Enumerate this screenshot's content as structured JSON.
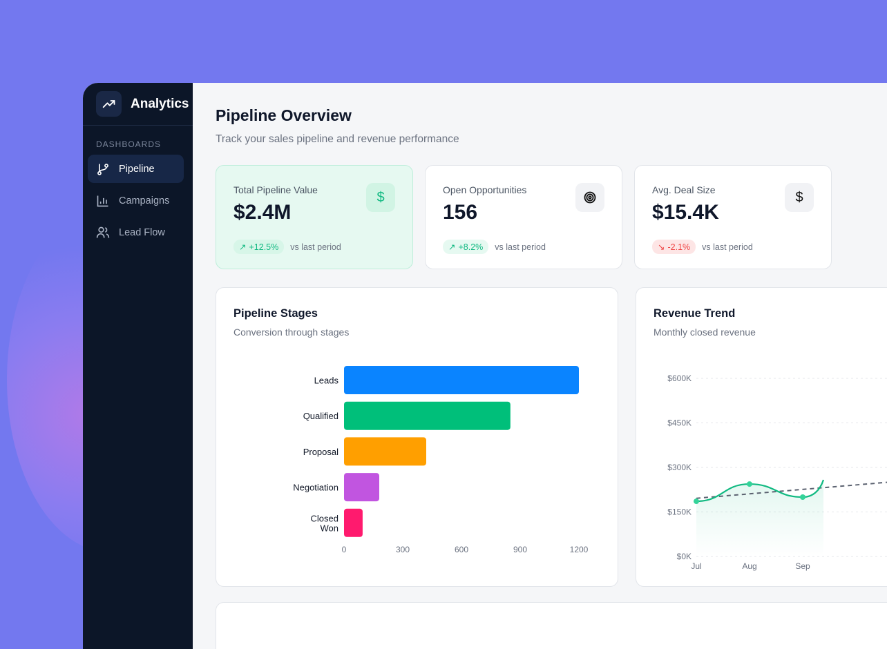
{
  "sidebar": {
    "title": "Analytics",
    "section": "DASHBOARDS",
    "items": [
      {
        "label": "Pipeline",
        "icon": "git-branch-icon",
        "active": true
      },
      {
        "label": "Campaigns",
        "icon": "bar-chart-icon"
      },
      {
        "label": "Lead Flow",
        "icon": "users-icon"
      }
    ]
  },
  "header": {
    "title": "Pipeline Overview",
    "subtitle": "Track your sales pipeline and revenue performance"
  },
  "kpis": [
    {
      "label": "Total Pipeline Value",
      "value": "$2.4M",
      "change": "+12.5%",
      "trend": "up",
      "note": "vs last period",
      "icon": "dollar-icon"
    },
    {
      "label": "Open Opportunities",
      "value": "156",
      "change": "+8.2%",
      "trend": "up",
      "note": "vs last period",
      "icon": "target-icon"
    },
    {
      "label": "Avg. Deal Size",
      "value": "$15.4K",
      "change": "-2.1%",
      "trend": "down",
      "note": "vs last period",
      "icon": "dollar-icon"
    }
  ],
  "colors": {
    "accent": "#10b981",
    "down": "#ef4444",
    "sidebar": "#0c1628",
    "background": "#7378ef"
  },
  "chart_data": [
    {
      "type": "bar",
      "orientation": "horizontal",
      "title": "Pipeline Stages",
      "subtitle": "Conversion through stages",
      "categories": [
        "Leads",
        "Qualified",
        "Proposal",
        "Negotiation",
        "Closed Won"
      ],
      "values": [
        1200,
        850,
        420,
        180,
        95
      ],
      "colors": [
        "#0a84ff",
        "#00bf7a",
        "#ff9f00",
        "#c155e0",
        "#ff1a6e"
      ],
      "xticks": [
        0,
        300,
        600,
        900,
        1200
      ],
      "xlim": [
        0,
        1200
      ]
    },
    {
      "type": "line",
      "title": "Revenue Trend",
      "subtitle": "Monthly closed revenue",
      "x": [
        "Jul",
        "Aug",
        "Sep"
      ],
      "values": [
        186,
        244,
        200
      ],
      "trend_line": [
        196,
        226
      ],
      "yticks": [
        "$0K",
        "$150K",
        "$300K",
        "$450K",
        "$600K"
      ],
      "ylim": [
        0,
        600
      ],
      "unit": "K",
      "grid": true,
      "color": "#10b981"
    }
  ]
}
